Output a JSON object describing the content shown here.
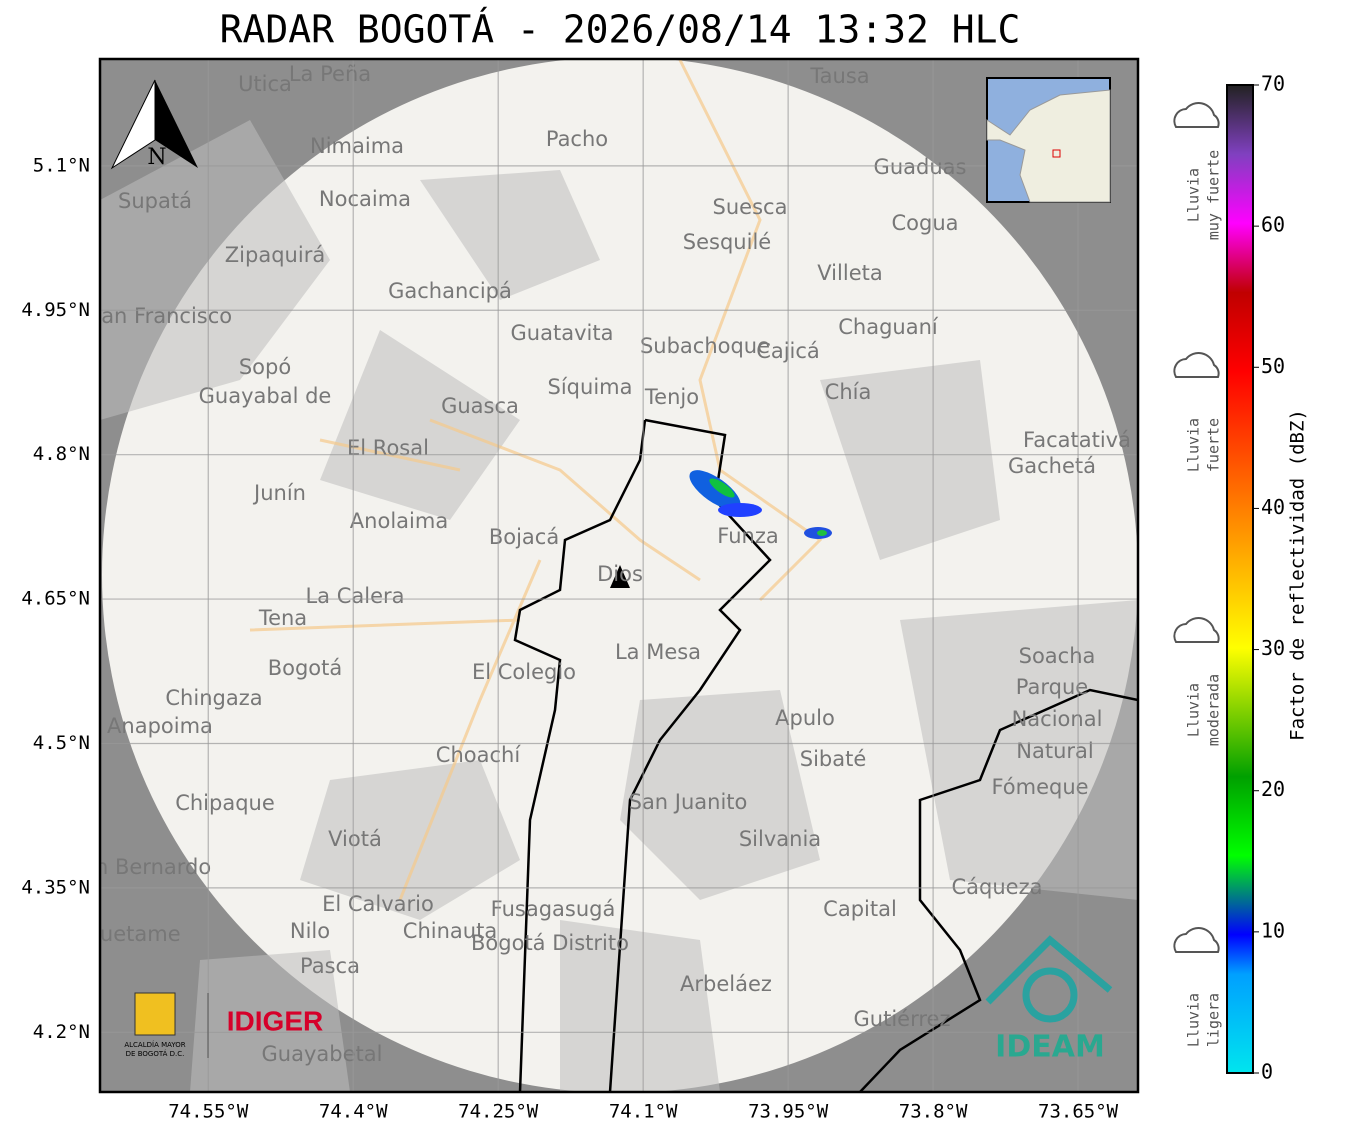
{
  "title": "RADAR BOGOTÁ - 2026/08/14 13:32 HLC",
  "map": {
    "lonlim": [
      -74.662,
      -73.588
    ],
    "latlim": [
      4.138,
      5.211
    ],
    "lon_ticks": [
      {
        "value": -74.55,
        "label": "74.55°W"
      },
      {
        "value": -74.4,
        "label": "74.4°W"
      },
      {
        "value": -74.25,
        "label": "74.25°W"
      },
      {
        "value": -74.1,
        "label": "74.1°W"
      },
      {
        "value": -73.95,
        "label": "73.95°W"
      },
      {
        "value": -73.8,
        "label": "73.8°W"
      },
      {
        "value": -73.65,
        "label": "73.65°W"
      }
    ],
    "lat_ticks": [
      {
        "value": 5.1,
        "label": "5.1°N"
      },
      {
        "value": 4.95,
        "label": "4.95°N"
      },
      {
        "value": 4.8,
        "label": "4.8°N"
      },
      {
        "value": 4.65,
        "label": "4.65°N"
      },
      {
        "value": 4.5,
        "label": "4.5°N"
      },
      {
        "value": 4.35,
        "label": "4.35°N"
      },
      {
        "value": 4.2,
        "label": "4.2°N"
      }
    ],
    "north": "N",
    "places": [
      "La Peña",
      "Utica",
      "Tausa",
      "Pacho",
      "Nimaima",
      "Nocaima",
      "Supatá",
      "Guaduas",
      "Suesca",
      "Cogua",
      "Sesquilé",
      "Zipaquirá",
      "Villeta",
      "Gachancipá",
      "San Francisco",
      "Chaguaní",
      "Guatavita",
      "Subachoque",
      "Cajicá",
      "Sopó",
      "Guayabal de",
      "Síquima",
      "Tenjo",
      "Chía",
      "Guasca",
      "El Rosal",
      "Facatativá",
      "Gachetá",
      "Junín",
      "Anolaima",
      "Bojacá",
      "Funza",
      "La Calera",
      "Tena",
      "La Mesa",
      "Bogotá",
      "El Colegio",
      "Soacha",
      "Parque",
      "Nacional",
      "Natural",
      "Chingaza",
      "Anapoima",
      "Apulo",
      "Choachí",
      "Sibaté",
      "Fómeque",
      "San Juanito",
      "Chipaque",
      "Viotá",
      "Silvania",
      "Cáqueza",
      "El Calvario",
      "Fusagasugá",
      "Bogotá Distrito",
      "Capital",
      "Quetame",
      "Nilo",
      "Chinauta",
      "Pasca",
      "Arbeláez",
      "Gutiérrez",
      "Guayabetal",
      "San Bernardo",
      "Dios"
    ]
  },
  "colorbar": {
    "label": "Factor de reflectividad (dBZ)",
    "lim": [
      0,
      70
    ],
    "ticks": [
      0,
      10,
      20,
      30,
      40,
      50,
      60,
      70
    ]
  },
  "rain_levels": [
    [
      "Lluvia",
      "muy fuerte"
    ],
    [
      "Lluvia",
      "fuerte"
    ],
    [
      "Lluvia",
      "moderada"
    ],
    [
      "Lluvia",
      "ligera"
    ]
  ],
  "logos": {
    "alcaldia": [
      "ALCALDÍA MAYOR",
      "DE BOGOTÁ D.C."
    ],
    "idiger": "IDIGER",
    "ideam": "IDEAM"
  }
}
